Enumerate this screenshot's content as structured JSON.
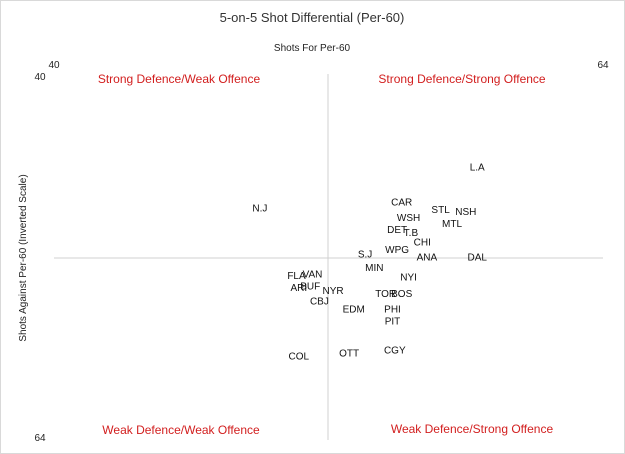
{
  "chart_data": {
    "type": "scatter",
    "title": "5-on-5 Shot Differential (Per-60)",
    "xlabel": "Shots For Per-60",
    "ylabel": "Shots Against Per-60 (Inverted Scale)",
    "xlim": [
      40,
      64
    ],
    "ylim": [
      40,
      64
    ],
    "y_inverted": true,
    "x_tick_labels": [
      "40",
      "64"
    ],
    "y_tick_labels": [
      "40",
      "64"
    ],
    "quadrant_color": "#d21e1e",
    "quadrants": {
      "top_left": "Strong Defence/Weak Offence",
      "top_right": "Strong Defence/Strong Offence",
      "bottom_left": "Weak Defence/Weak Offence",
      "bottom_right": "Weak Defence/Strong Offence"
    },
    "points": [
      {
        "label": "L.A",
        "x": 58.5,
        "y": 46.1
      },
      {
        "label": "N.J",
        "x": 49.0,
        "y": 48.8
      },
      {
        "label": "CAR",
        "x": 55.2,
        "y": 48.4
      },
      {
        "label": "STL",
        "x": 56.9,
        "y": 48.9
      },
      {
        "label": "NSH",
        "x": 58.0,
        "y": 49.0
      },
      {
        "label": "WSH",
        "x": 55.5,
        "y": 49.4
      },
      {
        "label": "MTL",
        "x": 57.4,
        "y": 49.8
      },
      {
        "label": "DET",
        "x": 55.0,
        "y": 50.2
      },
      {
        "label": "T.B",
        "x": 55.6,
        "y": 50.4
      },
      {
        "label": "CHI",
        "x": 56.1,
        "y": 51.0
      },
      {
        "label": "WPG",
        "x": 55.0,
        "y": 51.5
      },
      {
        "label": "S.J",
        "x": 53.6,
        "y": 51.8
      },
      {
        "label": "ANA",
        "x": 56.3,
        "y": 52.0
      },
      {
        "label": "DAL",
        "x": 58.5,
        "y": 52.0
      },
      {
        "label": "MIN",
        "x": 54.0,
        "y": 52.7
      },
      {
        "label": "VAN",
        "x": 51.3,
        "y": 53.1
      },
      {
        "label": "FLA",
        "x": 50.6,
        "y": 53.2
      },
      {
        "label": "NYI",
        "x": 55.5,
        "y": 53.3
      },
      {
        "label": "BUF",
        "x": 51.2,
        "y": 53.9
      },
      {
        "label": "ARI",
        "x": 50.7,
        "y": 54.0
      },
      {
        "label": "NYR",
        "x": 52.2,
        "y": 54.2
      },
      {
        "label": "TOR",
        "x": 54.5,
        "y": 54.4
      },
      {
        "label": "BOS",
        "x": 55.2,
        "y": 54.4
      },
      {
        "label": "CBJ",
        "x": 51.6,
        "y": 54.9
      },
      {
        "label": "EDM",
        "x": 53.1,
        "y": 55.4
      },
      {
        "label": "PHI",
        "x": 54.8,
        "y": 55.4
      },
      {
        "label": "PIT",
        "x": 54.8,
        "y": 56.2
      },
      {
        "label": "CGY",
        "x": 54.9,
        "y": 58.1
      },
      {
        "label": "OTT",
        "x": 52.9,
        "y": 58.3
      },
      {
        "label": "COL",
        "x": 50.7,
        "y": 58.5
      }
    ]
  }
}
